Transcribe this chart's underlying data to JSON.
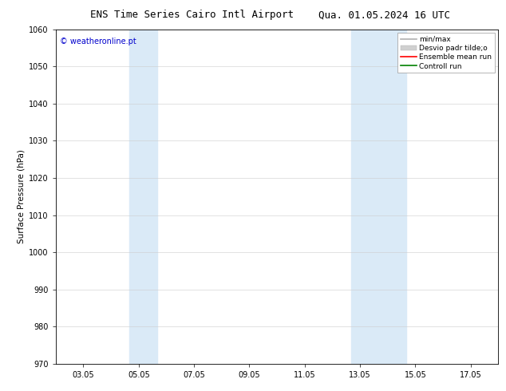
{
  "title_left": "ENS Time Series Cairo Intl Airport",
  "title_right": "Qua. 01.05.2024 16 UTC",
  "ylabel": "Surface Pressure (hPa)",
  "ylim": [
    970,
    1060
  ],
  "yticks": [
    970,
    980,
    990,
    1000,
    1010,
    1020,
    1030,
    1040,
    1050,
    1060
  ],
  "xtick_labels": [
    "03.05",
    "05.05",
    "07.05",
    "09.05",
    "11.05",
    "13.05",
    "15.05",
    "17.05"
  ],
  "xtick_positions": [
    1.0,
    3.0,
    5.0,
    7.0,
    9.0,
    11.0,
    13.0,
    15.0
  ],
  "xlim": [
    0,
    16
  ],
  "shaded_bands": [
    {
      "xmin": 2.67,
      "xmax": 3.67,
      "color": "#daeaf7"
    },
    {
      "xmin": 10.67,
      "xmax": 11.67,
      "color": "#daeaf7"
    },
    {
      "xmin": 11.67,
      "xmax": 12.67,
      "color": "#daeaf7"
    }
  ],
  "watermark_text": "© weatheronline.pt",
  "watermark_color": "#0000cc",
  "legend_entries": [
    {
      "label": "min/max",
      "color": "#b0b0b0",
      "lw": 1.2,
      "type": "line"
    },
    {
      "label": "Desvio padr tilde;o",
      "color": "#d0d0d0",
      "lw": 5,
      "type": "bar"
    },
    {
      "label": "Ensemble mean run",
      "color": "#ff0000",
      "lw": 1.2,
      "type": "line"
    },
    {
      "label": "Controll run",
      "color": "#008000",
      "lw": 1.2,
      "type": "line"
    }
  ],
  "bg_color": "#ffffff",
  "title_fontsize": 9,
  "axis_fontsize": 7.5,
  "tick_fontsize": 7,
  "legend_fontsize": 6.5,
  "watermark_fontsize": 7
}
